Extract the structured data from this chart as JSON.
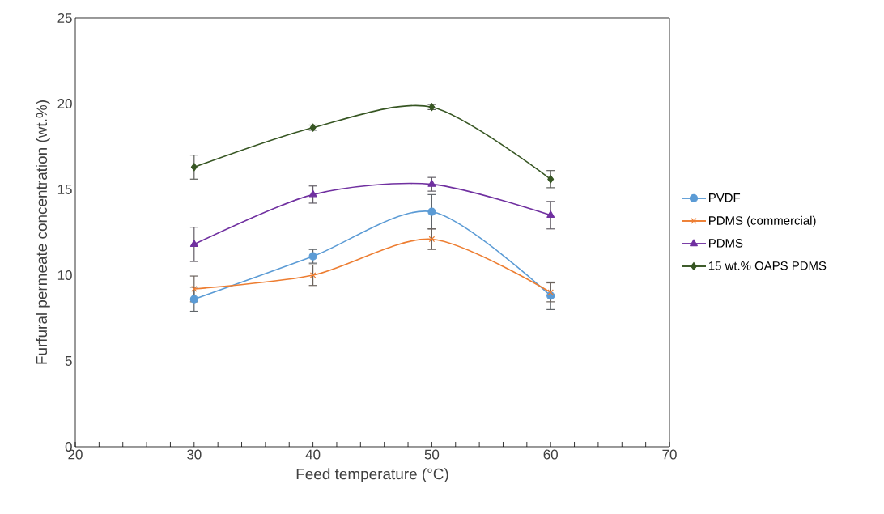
{
  "chart_data": {
    "type": "line",
    "xlabel": "Feed temperature (°C)",
    "ylabel": "Furfural permeate concentration (wt.%)",
    "x": [
      30,
      40,
      50,
      60
    ],
    "series": [
      {
        "name": "PVDF",
        "color": "#5b9bd5",
        "marker": "circle",
        "values": [
          8.6,
          11.1,
          13.7,
          8.8
        ],
        "errors": [
          0.7,
          0.4,
          1.0,
          0.8
        ]
      },
      {
        "name": "PDMS (commercial)",
        "color": "#ed7d31",
        "marker": "cross",
        "values": [
          9.2,
          10.0,
          12.1,
          9.0
        ],
        "errors": [
          0.75,
          0.6,
          0.6,
          0.55
        ]
      },
      {
        "name": "PDMS",
        "color": "#7030a0",
        "marker": "triangle",
        "values": [
          11.8,
          14.7,
          15.3,
          13.5
        ],
        "errors": [
          1.0,
          0.5,
          0.4,
          0.8
        ]
      },
      {
        "name": "15 wt.% OAPS PDMS",
        "color": "#375623",
        "marker": "diamond",
        "values": [
          16.3,
          18.6,
          19.8,
          15.6
        ],
        "errors": [
          0.7,
          0.15,
          0.15,
          0.5
        ]
      }
    ],
    "xlim": [
      20,
      70
    ],
    "ylim": [
      0,
      25
    ],
    "xticks": [
      20,
      30,
      40,
      50,
      60,
      70
    ],
    "yticks": [
      0,
      5,
      10,
      15,
      20,
      25
    ],
    "legend": "right"
  }
}
